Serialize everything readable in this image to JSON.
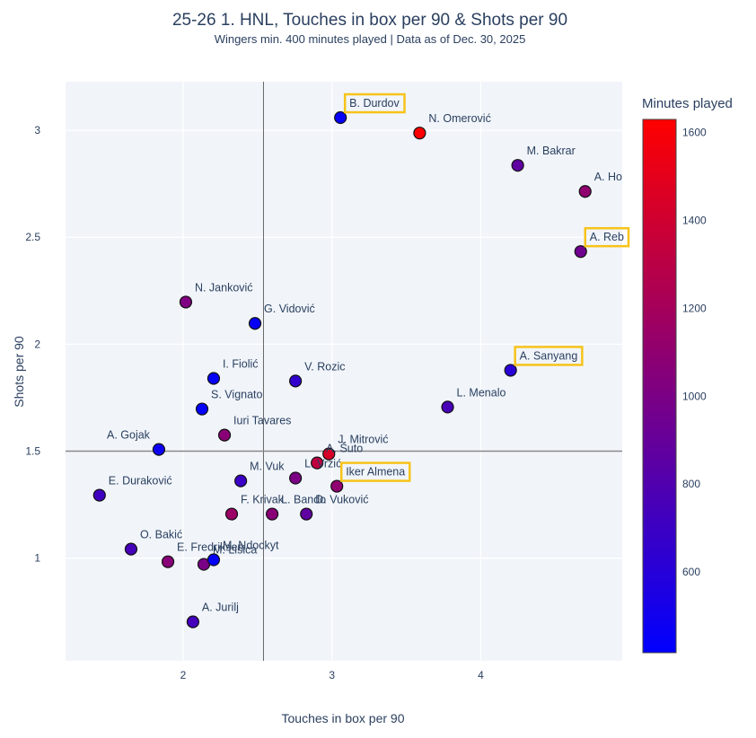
{
  "chart_data": {
    "type": "scatter",
    "title": "25-26 1. HNL, Touches in box per 90 & Shots per 90",
    "subtitle": "Wingers min. 400 minutes played | Data as of Dec. 30, 2025",
    "xlabel": "Touches in box per 90",
    "ylabel": "Shots per 90",
    "xlim": [
      1.21,
      4.95
    ],
    "ylim": [
      0.52,
      3.227
    ],
    "xticks": [
      2,
      3,
      4
    ],
    "yticks": [
      1,
      1.5,
      2,
      2.5,
      3
    ],
    "xtick_labels": [
      "2",
      "3",
      "4"
    ],
    "ytick_labels": [
      "1",
      "1.5",
      "2",
      "2.5",
      "3"
    ],
    "grid": true,
    "reference_lines": {
      "x_mean": 2.54,
      "y_mean": 1.5
    },
    "colorbar": {
      "title": "Minutes played",
      "range": [
        416,
        1630
      ],
      "ticks": [
        600,
        800,
        1000,
        1200,
        1400,
        1600
      ],
      "tick_labels": [
        "600",
        "800",
        "1000",
        "1200",
        "1400",
        "1600"
      ],
      "colorscale": [
        "#0000ff",
        "#ff0000"
      ],
      "placement": "right"
    },
    "highlight_color": "#f7c31a",
    "points": [
      {
        "name": "B. Durdov",
        "x": 3.057,
        "y": 3.059,
        "minutes": 450,
        "highlight": true
      },
      {
        "name": "N. Omerović",
        "x": 3.589,
        "y": 2.987,
        "minutes": 1625,
        "highlight": false
      },
      {
        "name": "M. Bakrar",
        "x": 4.248,
        "y": 2.836,
        "minutes": 870,
        "highlight": false
      },
      {
        "name": "A. Ho",
        "x": 4.701,
        "y": 2.714,
        "minutes": 1100,
        "highlight": false
      },
      {
        "name": "A. Reb",
        "x": 4.671,
        "y": 2.433,
        "minutes": 950,
        "highlight": true
      },
      {
        "name": "N. Janković",
        "x": 2.018,
        "y": 2.197,
        "minutes": 1020,
        "highlight": false
      },
      {
        "name": "G. Vidović",
        "x": 2.483,
        "y": 2.097,
        "minutes": 450,
        "highlight": false
      },
      {
        "name": "I. Fiolić",
        "x": 2.205,
        "y": 1.84,
        "minutes": 440,
        "highlight": false
      },
      {
        "name": "V. Rozic",
        "x": 2.755,
        "y": 1.828,
        "minutes": 650,
        "highlight": false
      },
      {
        "name": "A. Sanyang",
        "x": 4.2,
        "y": 1.878,
        "minutes": 610,
        "highlight": true
      },
      {
        "name": "S. Vignato",
        "x": 2.127,
        "y": 1.697,
        "minutes": 430,
        "highlight": false
      },
      {
        "name": "L. Menalo",
        "x": 3.777,
        "y": 1.706,
        "minutes": 760,
        "highlight": false
      },
      {
        "name": "Iuri Tavares",
        "x": 2.278,
        "y": 1.575,
        "minutes": 1070,
        "highlight": false
      },
      {
        "name": "A. Gojak",
        "x": 1.837,
        "y": 1.508,
        "minutes": 480,
        "highlight": false,
        "label_side": "left"
      },
      {
        "name": "J. Mitrović",
        "x": 2.979,
        "y": 1.487,
        "minutes": 1440,
        "highlight": false
      },
      {
        "name": "A. Šuto",
        "x": 2.9,
        "y": 1.445,
        "minutes": 1330,
        "highlight": false
      },
      {
        "name": "L. Vrzić",
        "x": 2.755,
        "y": 1.374,
        "minutes": 1000,
        "highlight": false
      },
      {
        "name": "M. Vuk",
        "x": 2.387,
        "y": 1.361,
        "minutes": 690,
        "highlight": false
      },
      {
        "name": "Iker Almena",
        "x": 3.033,
        "y": 1.336,
        "minutes": 1100,
        "highlight": true
      },
      {
        "name": "E. Duraković",
        "x": 1.438,
        "y": 1.294,
        "minutes": 720,
        "highlight": false
      },
      {
        "name": "F. Krivak",
        "x": 2.326,
        "y": 1.206,
        "minutes": 1150,
        "highlight": false
      },
      {
        "name": "L. Bando",
        "x": 2.598,
        "y": 1.206,
        "minutes": 1070,
        "highlight": false
      },
      {
        "name": "D. Vuković",
        "x": 2.828,
        "y": 1.206,
        "minutes": 870,
        "highlight": false
      },
      {
        "name": "O. Bakić",
        "x": 1.65,
        "y": 1.042,
        "minutes": 750,
        "highlight": false
      },
      {
        "name": "E. Fredriksen",
        "x": 1.898,
        "y": 0.983,
        "minutes": 1060,
        "highlight": false
      },
      {
        "name": "M. Lisica",
        "x": 2.139,
        "y": 0.971,
        "minutes": 990,
        "highlight": false
      },
      {
        "name": "M. Ndockyt",
        "x": 2.205,
        "y": 0.992,
        "minutes": 430,
        "highlight": false
      },
      {
        "name": "A. Jurilj",
        "x": 2.066,
        "y": 0.702,
        "minutes": 740,
        "highlight": false
      }
    ]
  }
}
